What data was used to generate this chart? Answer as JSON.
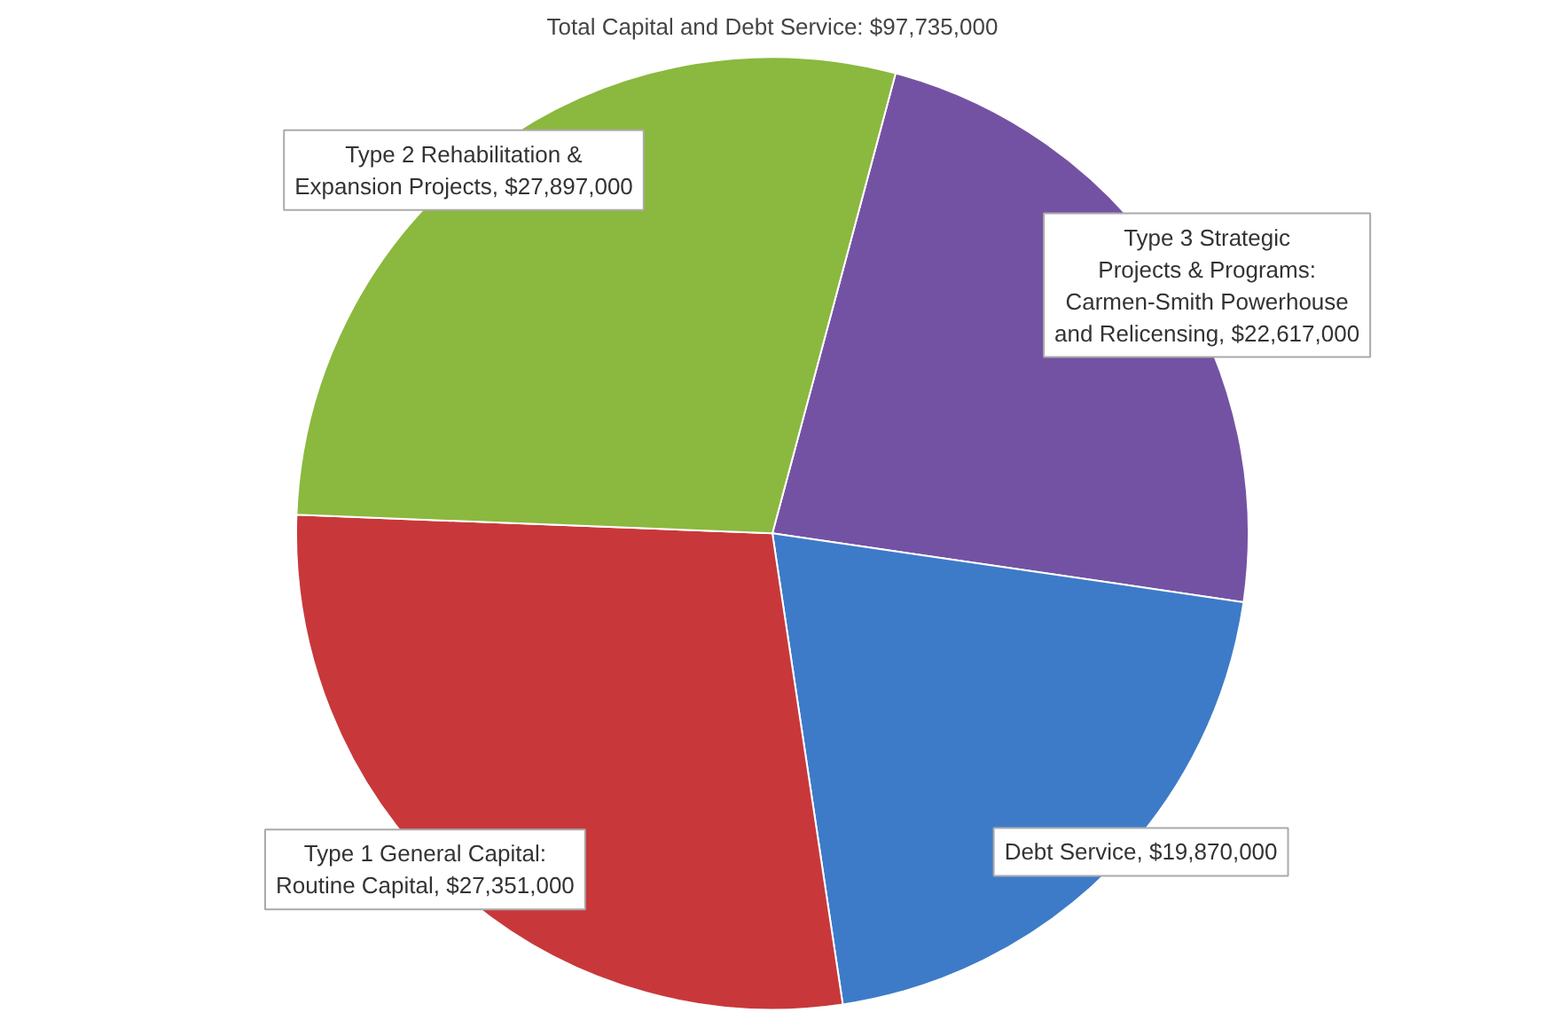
{
  "chart_data": {
    "type": "pie",
    "subtitle": "Total Capital and Debt Service: $97,735,000",
    "categories": [
      "Type 3 Strategic Projects & Programs: Carmen-Smith Powerhouse and Relicensing",
      "Debt Service",
      "Type 1 General Capital: Routine Capital",
      "Type 2 Rehabilitation & Expansion Projects"
    ],
    "values": [
      22617000,
      19870000,
      27351000,
      27897000
    ],
    "value_labels": [
      "$22,617,000",
      "$19,870,000",
      "$27,351,000",
      "$27,897,000"
    ],
    "colors": [
      "#7452a3",
      "#3d7bc8",
      "#c8383a",
      "#8bb83f"
    ]
  }
}
